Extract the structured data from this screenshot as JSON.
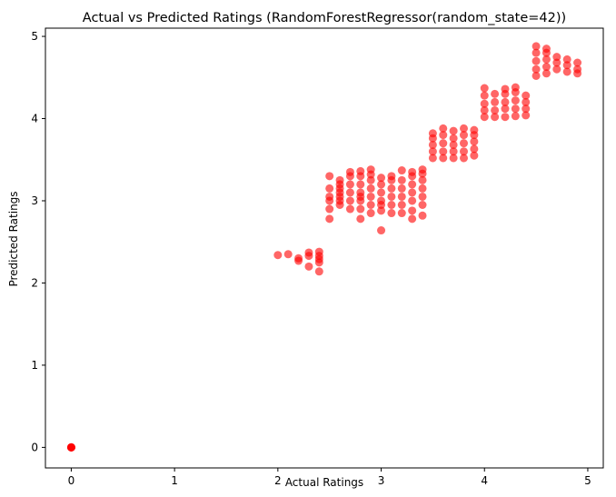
{
  "chart_data": {
    "type": "scatter",
    "title": "Actual vs Predicted Ratings (RandomForestRegressor(random_state=42))",
    "xlabel": "Actual Ratings",
    "ylabel": "Predicted Ratings",
    "xlim": [
      -0.25,
      5.15
    ],
    "ylim": [
      -0.25,
      5.1
    ],
    "xticks": [
      0,
      1,
      2,
      3,
      4,
      5
    ],
    "yticks": [
      0,
      1,
      2,
      3,
      4,
      5
    ],
    "xtick_labels": [
      "0",
      "1",
      "2",
      "3",
      "4",
      "5"
    ],
    "ytick_labels": [
      "0",
      "1",
      "2",
      "3",
      "4",
      "5"
    ],
    "grid": false,
    "legend": "none",
    "marker_color": "#ff0000",
    "marker_alpha": 0.6,
    "points": [
      [
        0,
        0
      ],
      [
        0,
        0
      ],
      [
        0,
        0
      ],
      [
        0,
        0
      ],
      [
        0,
        0
      ],
      [
        2.0,
        2.34
      ],
      [
        2.1,
        2.35
      ],
      [
        2.2,
        2.27
      ],
      [
        2.2,
        2.3
      ],
      [
        2.3,
        2.2
      ],
      [
        2.3,
        2.33
      ],
      [
        2.3,
        2.37
      ],
      [
        2.4,
        2.14
      ],
      [
        2.4,
        2.25
      ],
      [
        2.4,
        2.29
      ],
      [
        2.4,
        2.33
      ],
      [
        2.4,
        2.38
      ],
      [
        2.5,
        2.78
      ],
      [
        2.5,
        2.9
      ],
      [
        2.5,
        3.0
      ],
      [
        2.5,
        3.05
      ],
      [
        2.5,
        3.15
      ],
      [
        2.5,
        3.3
      ],
      [
        2.6,
        2.95
      ],
      [
        2.6,
        3.0
      ],
      [
        2.6,
        3.05
      ],
      [
        2.6,
        3.1
      ],
      [
        2.6,
        3.15
      ],
      [
        2.6,
        3.2
      ],
      [
        2.6,
        3.25
      ],
      [
        2.7,
        2.9
      ],
      [
        2.7,
        3.0
      ],
      [
        2.7,
        3.1
      ],
      [
        2.7,
        3.2
      ],
      [
        2.7,
        3.3
      ],
      [
        2.7,
        3.35
      ],
      [
        2.8,
        2.78
      ],
      [
        2.8,
        2.9
      ],
      [
        2.8,
        3.0
      ],
      [
        2.8,
        3.05
      ],
      [
        2.8,
        3.1
      ],
      [
        2.8,
        3.2
      ],
      [
        2.8,
        3.3
      ],
      [
        2.8,
        3.36
      ],
      [
        2.9,
        2.85
      ],
      [
        2.9,
        2.95
      ],
      [
        2.9,
        3.05
      ],
      [
        2.9,
        3.15
      ],
      [
        2.9,
        3.25
      ],
      [
        2.9,
        3.32
      ],
      [
        2.9,
        3.38
      ],
      [
        3.0,
        2.64
      ],
      [
        3.0,
        2.88
      ],
      [
        3.0,
        2.95
      ],
      [
        3.0,
        3.0
      ],
      [
        3.0,
        3.1
      ],
      [
        3.0,
        3.2
      ],
      [
        3.0,
        3.28
      ],
      [
        3.1,
        2.85
      ],
      [
        3.1,
        2.95
      ],
      [
        3.1,
        3.05
      ],
      [
        3.1,
        3.15
      ],
      [
        3.1,
        3.25
      ],
      [
        3.1,
        3.3
      ],
      [
        3.2,
        2.85
      ],
      [
        3.2,
        2.95
      ],
      [
        3.2,
        3.05
      ],
      [
        3.2,
        3.15
      ],
      [
        3.2,
        3.25
      ],
      [
        3.2,
        3.37
      ],
      [
        3.3,
        2.78
      ],
      [
        3.3,
        2.88
      ],
      [
        3.3,
        3.0
      ],
      [
        3.3,
        3.1
      ],
      [
        3.3,
        3.2
      ],
      [
        3.3,
        3.3
      ],
      [
        3.3,
        3.35
      ],
      [
        3.4,
        2.82
      ],
      [
        3.4,
        2.95
      ],
      [
        3.4,
        3.05
      ],
      [
        3.4,
        3.15
      ],
      [
        3.4,
        3.25
      ],
      [
        3.4,
        3.33
      ],
      [
        3.4,
        3.38
      ],
      [
        3.5,
        3.52
      ],
      [
        3.5,
        3.6
      ],
      [
        3.5,
        3.68
      ],
      [
        3.5,
        3.76
      ],
      [
        3.5,
        3.82
      ],
      [
        3.6,
        3.52
      ],
      [
        3.6,
        3.6
      ],
      [
        3.6,
        3.7
      ],
      [
        3.6,
        3.8
      ],
      [
        3.6,
        3.88
      ],
      [
        3.7,
        3.52
      ],
      [
        3.7,
        3.6
      ],
      [
        3.7,
        3.68
      ],
      [
        3.7,
        3.76
      ],
      [
        3.7,
        3.85
      ],
      [
        3.8,
        3.52
      ],
      [
        3.8,
        3.6
      ],
      [
        3.8,
        3.7
      ],
      [
        3.8,
        3.8
      ],
      [
        3.8,
        3.88
      ],
      [
        3.9,
        3.55
      ],
      [
        3.9,
        3.63
      ],
      [
        3.9,
        3.72
      ],
      [
        3.9,
        3.8
      ],
      [
        3.9,
        3.86
      ],
      [
        4.0,
        4.02
      ],
      [
        4.0,
        4.1
      ],
      [
        4.0,
        4.18
      ],
      [
        4.0,
        4.28
      ],
      [
        4.0,
        4.37
      ],
      [
        4.1,
        4.02
      ],
      [
        4.1,
        4.1
      ],
      [
        4.1,
        4.2
      ],
      [
        4.1,
        4.3
      ],
      [
        4.2,
        4.02
      ],
      [
        4.2,
        4.12
      ],
      [
        4.2,
        4.2
      ],
      [
        4.2,
        4.3
      ],
      [
        4.2,
        4.36
      ],
      [
        4.3,
        4.03
      ],
      [
        4.3,
        4.12
      ],
      [
        4.3,
        4.22
      ],
      [
        4.3,
        4.32
      ],
      [
        4.3,
        4.38
      ],
      [
        4.4,
        4.04
      ],
      [
        4.4,
        4.12
      ],
      [
        4.4,
        4.2
      ],
      [
        4.4,
        4.28
      ],
      [
        4.5,
        4.52
      ],
      [
        4.5,
        4.6
      ],
      [
        4.5,
        4.7
      ],
      [
        4.5,
        4.8
      ],
      [
        4.5,
        4.88
      ],
      [
        4.6,
        4.55
      ],
      [
        4.6,
        4.63
      ],
      [
        4.6,
        4.72
      ],
      [
        4.6,
        4.8
      ],
      [
        4.6,
        4.85
      ],
      [
        4.7,
        4.6
      ],
      [
        4.7,
        4.68
      ],
      [
        4.7,
        4.75
      ],
      [
        4.8,
        4.57
      ],
      [
        4.8,
        4.65
      ],
      [
        4.8,
        4.72
      ],
      [
        4.9,
        4.55
      ],
      [
        4.9,
        4.6
      ],
      [
        4.9,
        4.68
      ]
    ]
  }
}
